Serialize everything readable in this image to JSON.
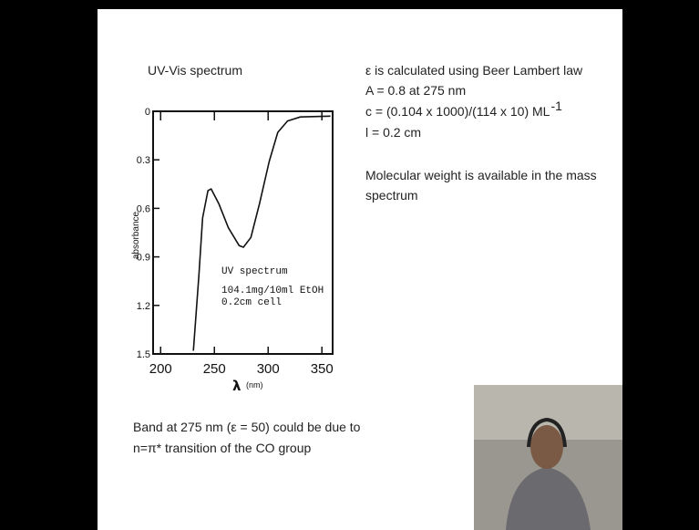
{
  "slide": {
    "title": "UV-Vis spectrum",
    "right_text": [
      "ε is calculated using Beer Lambert law",
      "A = 0.8 at 275 nm",
      "c = (0.104 x 1000)/(114 x 10)  ML",
      "l = 0.2 cm",
      "Molecular weight is available in the mass",
      "spectrum"
    ],
    "superscript": "-1",
    "bottom_text": [
      "Band at 275 nm (ε = 50) could be due to",
      "n=π* transition of the CO group"
    ]
  },
  "chart_data": {
    "type": "line",
    "xlabel": "λ",
    "xunit": "(nm)",
    "ylabel": "absorbance",
    "annotations": [
      "UV spectrum",
      "104.1mg/10ml EtOH",
      "0.2cm cell"
    ],
    "x": [
      230.5,
      235.6,
      239,
      244,
      247,
      254,
      263,
      273,
      277,
      284,
      292,
      301,
      309,
      318,
      330,
      358
    ],
    "values": [
      1.48,
      1.01,
      0.66,
      0.49,
      0.48,
      0.57,
      0.72,
      0.83,
      0.84,
      0.78,
      0.57,
      0.31,
      0.13,
      0.06,
      0.035,
      0.03
    ],
    "color": "#111111",
    "xlim": [
      193,
      360
    ],
    "xticks": [
      200,
      250,
      300,
      350
    ],
    "ylim": [
      1.5,
      0
    ],
    "yticks": [
      0,
      0.3,
      0.6,
      0.9,
      1.2,
      1.5
    ]
  }
}
